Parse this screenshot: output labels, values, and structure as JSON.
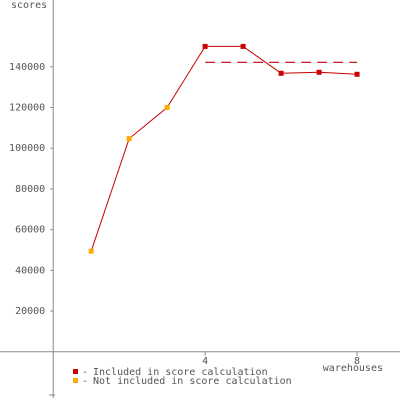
{
  "chart_data": {
    "type": "line",
    "y_label": "scores",
    "x_label": "warehouses",
    "x": [
      1,
      2,
      3,
      4,
      5,
      6,
      7,
      8
    ],
    "series": [
      {
        "name": "Included in score calculation",
        "color": "#cc0000",
        "values": [
          null,
          null,
          null,
          150000,
          150000,
          136800,
          137300,
          136300
        ]
      },
      {
        "name": "Not included in score calculation",
        "color": "#ffaa00",
        "values": [
          49400,
          104700,
          120000,
          null,
          null,
          null,
          null,
          null
        ]
      }
    ],
    "line_color": "#cc0000",
    "score_line": 142200,
    "xlim": [
      -1.4,
      9.13
    ],
    "ylim": [
      -23700,
      172800
    ],
    "xticks": [
      4,
      8
    ],
    "yticks": [
      20000,
      40000,
      60000,
      80000,
      100000,
      120000,
      140000
    ]
  }
}
